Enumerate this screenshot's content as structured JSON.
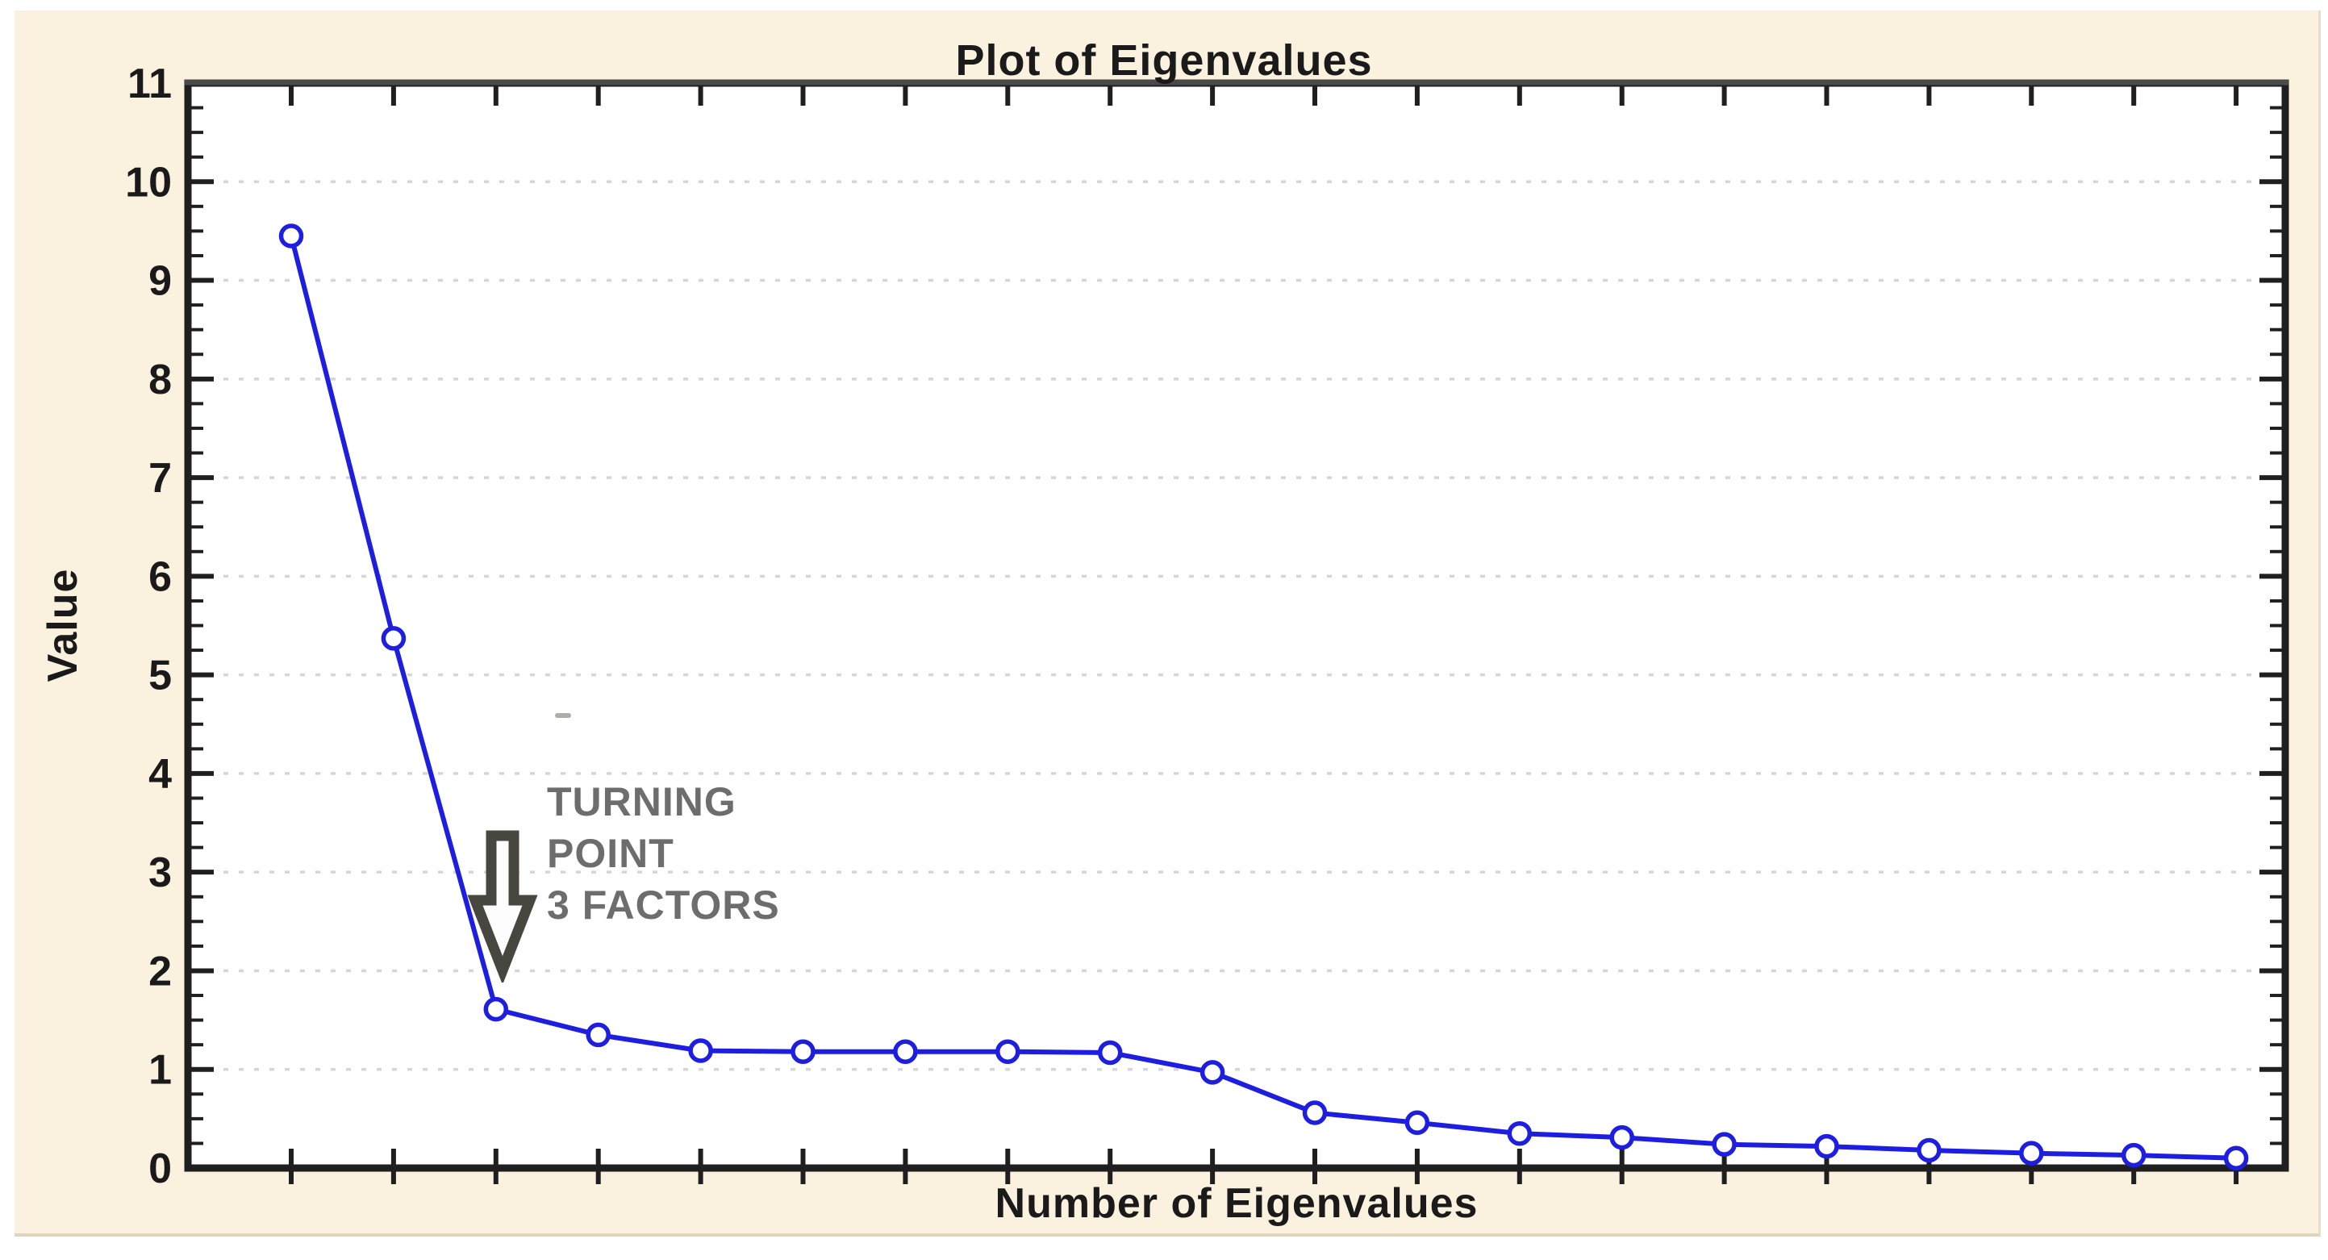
{
  "chart_data": {
    "type": "line",
    "title": "Plot of Eigenvalues",
    "xlabel": "Number of Eigenvalues",
    "ylabel": "Value",
    "x": [
      1,
      2,
      3,
      4,
      5,
      6,
      7,
      8,
      9,
      10,
      11,
      12,
      13,
      14,
      15,
      16,
      17,
      18,
      19,
      20
    ],
    "values": [
      9.45,
      5.37,
      1.61,
      1.35,
      1.19,
      1.18,
      1.18,
      1.18,
      1.17,
      0.97,
      0.56,
      0.46,
      0.35,
      0.31,
      0.24,
      0.22,
      0.18,
      0.15,
      0.13,
      0.1
    ],
    "ylim": [
      0,
      11
    ],
    "y_ticks": [
      0,
      1,
      2,
      3,
      4,
      5,
      6,
      7,
      8,
      9,
      10,
      11
    ],
    "y_tick_labels": [
      "0",
      "1",
      "2",
      "3",
      "4",
      "5",
      "6",
      "7",
      "8",
      "9",
      "10",
      "11"
    ],
    "y_minor_step": 0.25,
    "x_tick_count": 20,
    "x_tick_labels": [],
    "grid": "horizontal-dashed-major-only",
    "legend": "none",
    "marker": "open-circle",
    "annotation": {
      "lines": [
        "TURNING",
        "POINT",
        "3 FACTORS"
      ],
      "arrow": "down",
      "points_to_x": 3
    },
    "colors": {
      "line": "#1e1ee0",
      "marker_fill": "#ffffff",
      "grid": "#d6d6d6",
      "frame": "#1f1f1f",
      "frame_top_accent": "#4a4a4a",
      "plot_background": "#ffffff",
      "panel_background": "#faf2df",
      "page_background": "#ffffff",
      "text": "#1a1a1a",
      "annotation_text": "#6d6d6d",
      "arrow_outline": "#47463f",
      "arrow_fill": "#fdfdfd"
    }
  }
}
